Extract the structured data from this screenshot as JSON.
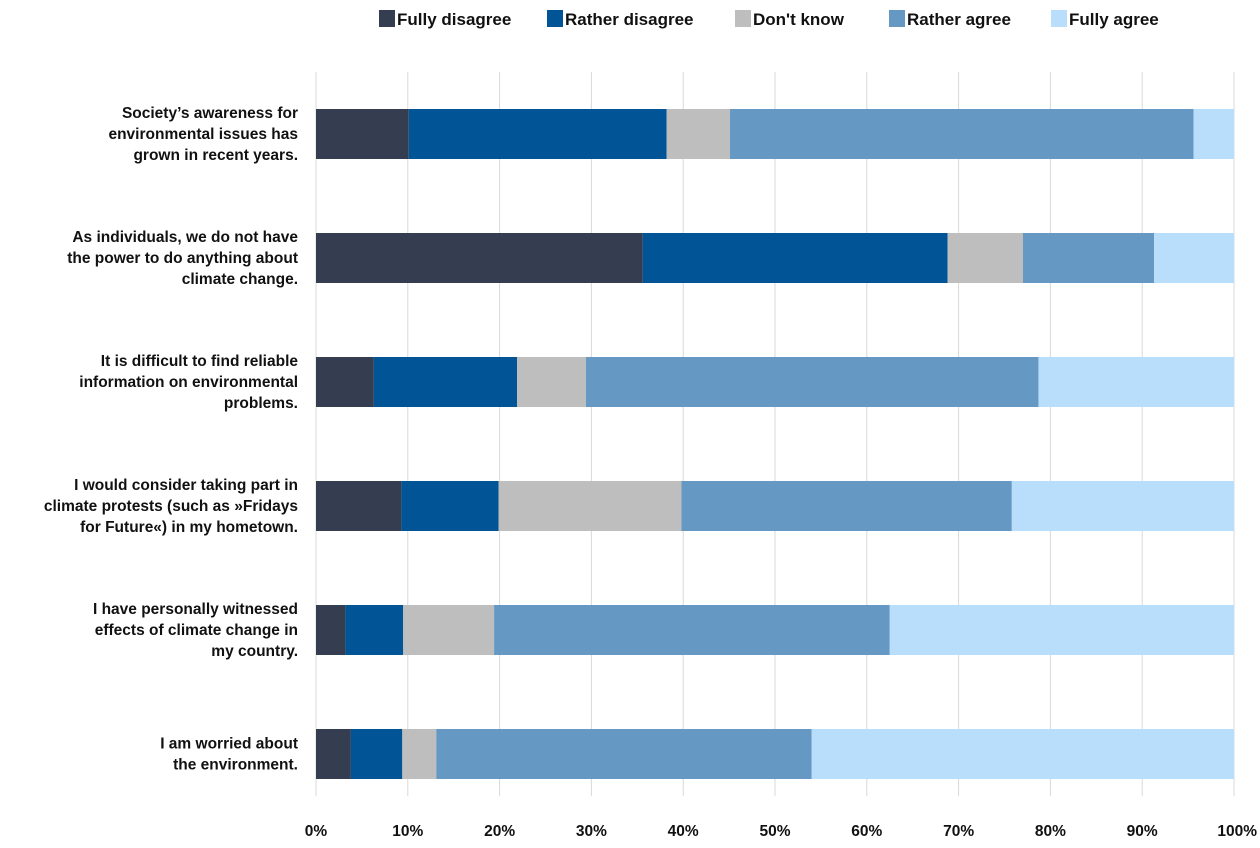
{
  "chart_data": {
    "type": "bar",
    "orientation": "horizontal",
    "stacked": "percent",
    "title": "",
    "xlabel": "",
    "ylabel": "",
    "xlim": [
      0,
      100
    ],
    "grid": "vertical",
    "legend_position": "top",
    "x_ticks": [
      "0%",
      "10%",
      "20%",
      "30%",
      "40%",
      "50%",
      "60%",
      "70%",
      "80%",
      "90%",
      "100%"
    ],
    "categories": [
      [
        "Society’s awareness for",
        "environmental issues has",
        "grown in recent years."
      ],
      [
        "As individuals, we do not have",
        "the power to do anything about",
        "climate change."
      ],
      [
        "It is difficult to find reliable",
        "information on environmental",
        "problems."
      ],
      [
        "I would consider taking part in",
        "climate protests (such as »Fridays",
        "for Future«) in my hometown."
      ],
      [
        "I have personally witnessed",
        "effects of climate change in",
        "my country."
      ],
      [
        "I am worried about",
        "the environment."
      ]
    ],
    "series": [
      {
        "name": "Fully disagree",
        "color": "#343e50",
        "values": [
          10.1,
          35.6,
          6.3,
          9.3,
          3.2,
          3.8
        ]
      },
      {
        "name": "Rather disagree",
        "color": "#015596",
        "values": [
          28.1,
          33.2,
          15.6,
          10.6,
          6.3,
          5.6
        ]
      },
      {
        "name": "Don't know",
        "color": "#bebebe",
        "values": [
          6.9,
          8.2,
          7.5,
          19.9,
          9.9,
          3.7
        ]
      },
      {
        "name": "Rather agree",
        "color": "#6599c3",
        "values": [
          50.5,
          14.3,
          49.3,
          36.0,
          43.1,
          40.9
        ]
      },
      {
        "name": "Fully agree",
        "color": "#b9defc",
        "values": [
          4.4,
          8.7,
          21.3,
          24.2,
          37.5,
          46.0
        ]
      }
    ]
  }
}
